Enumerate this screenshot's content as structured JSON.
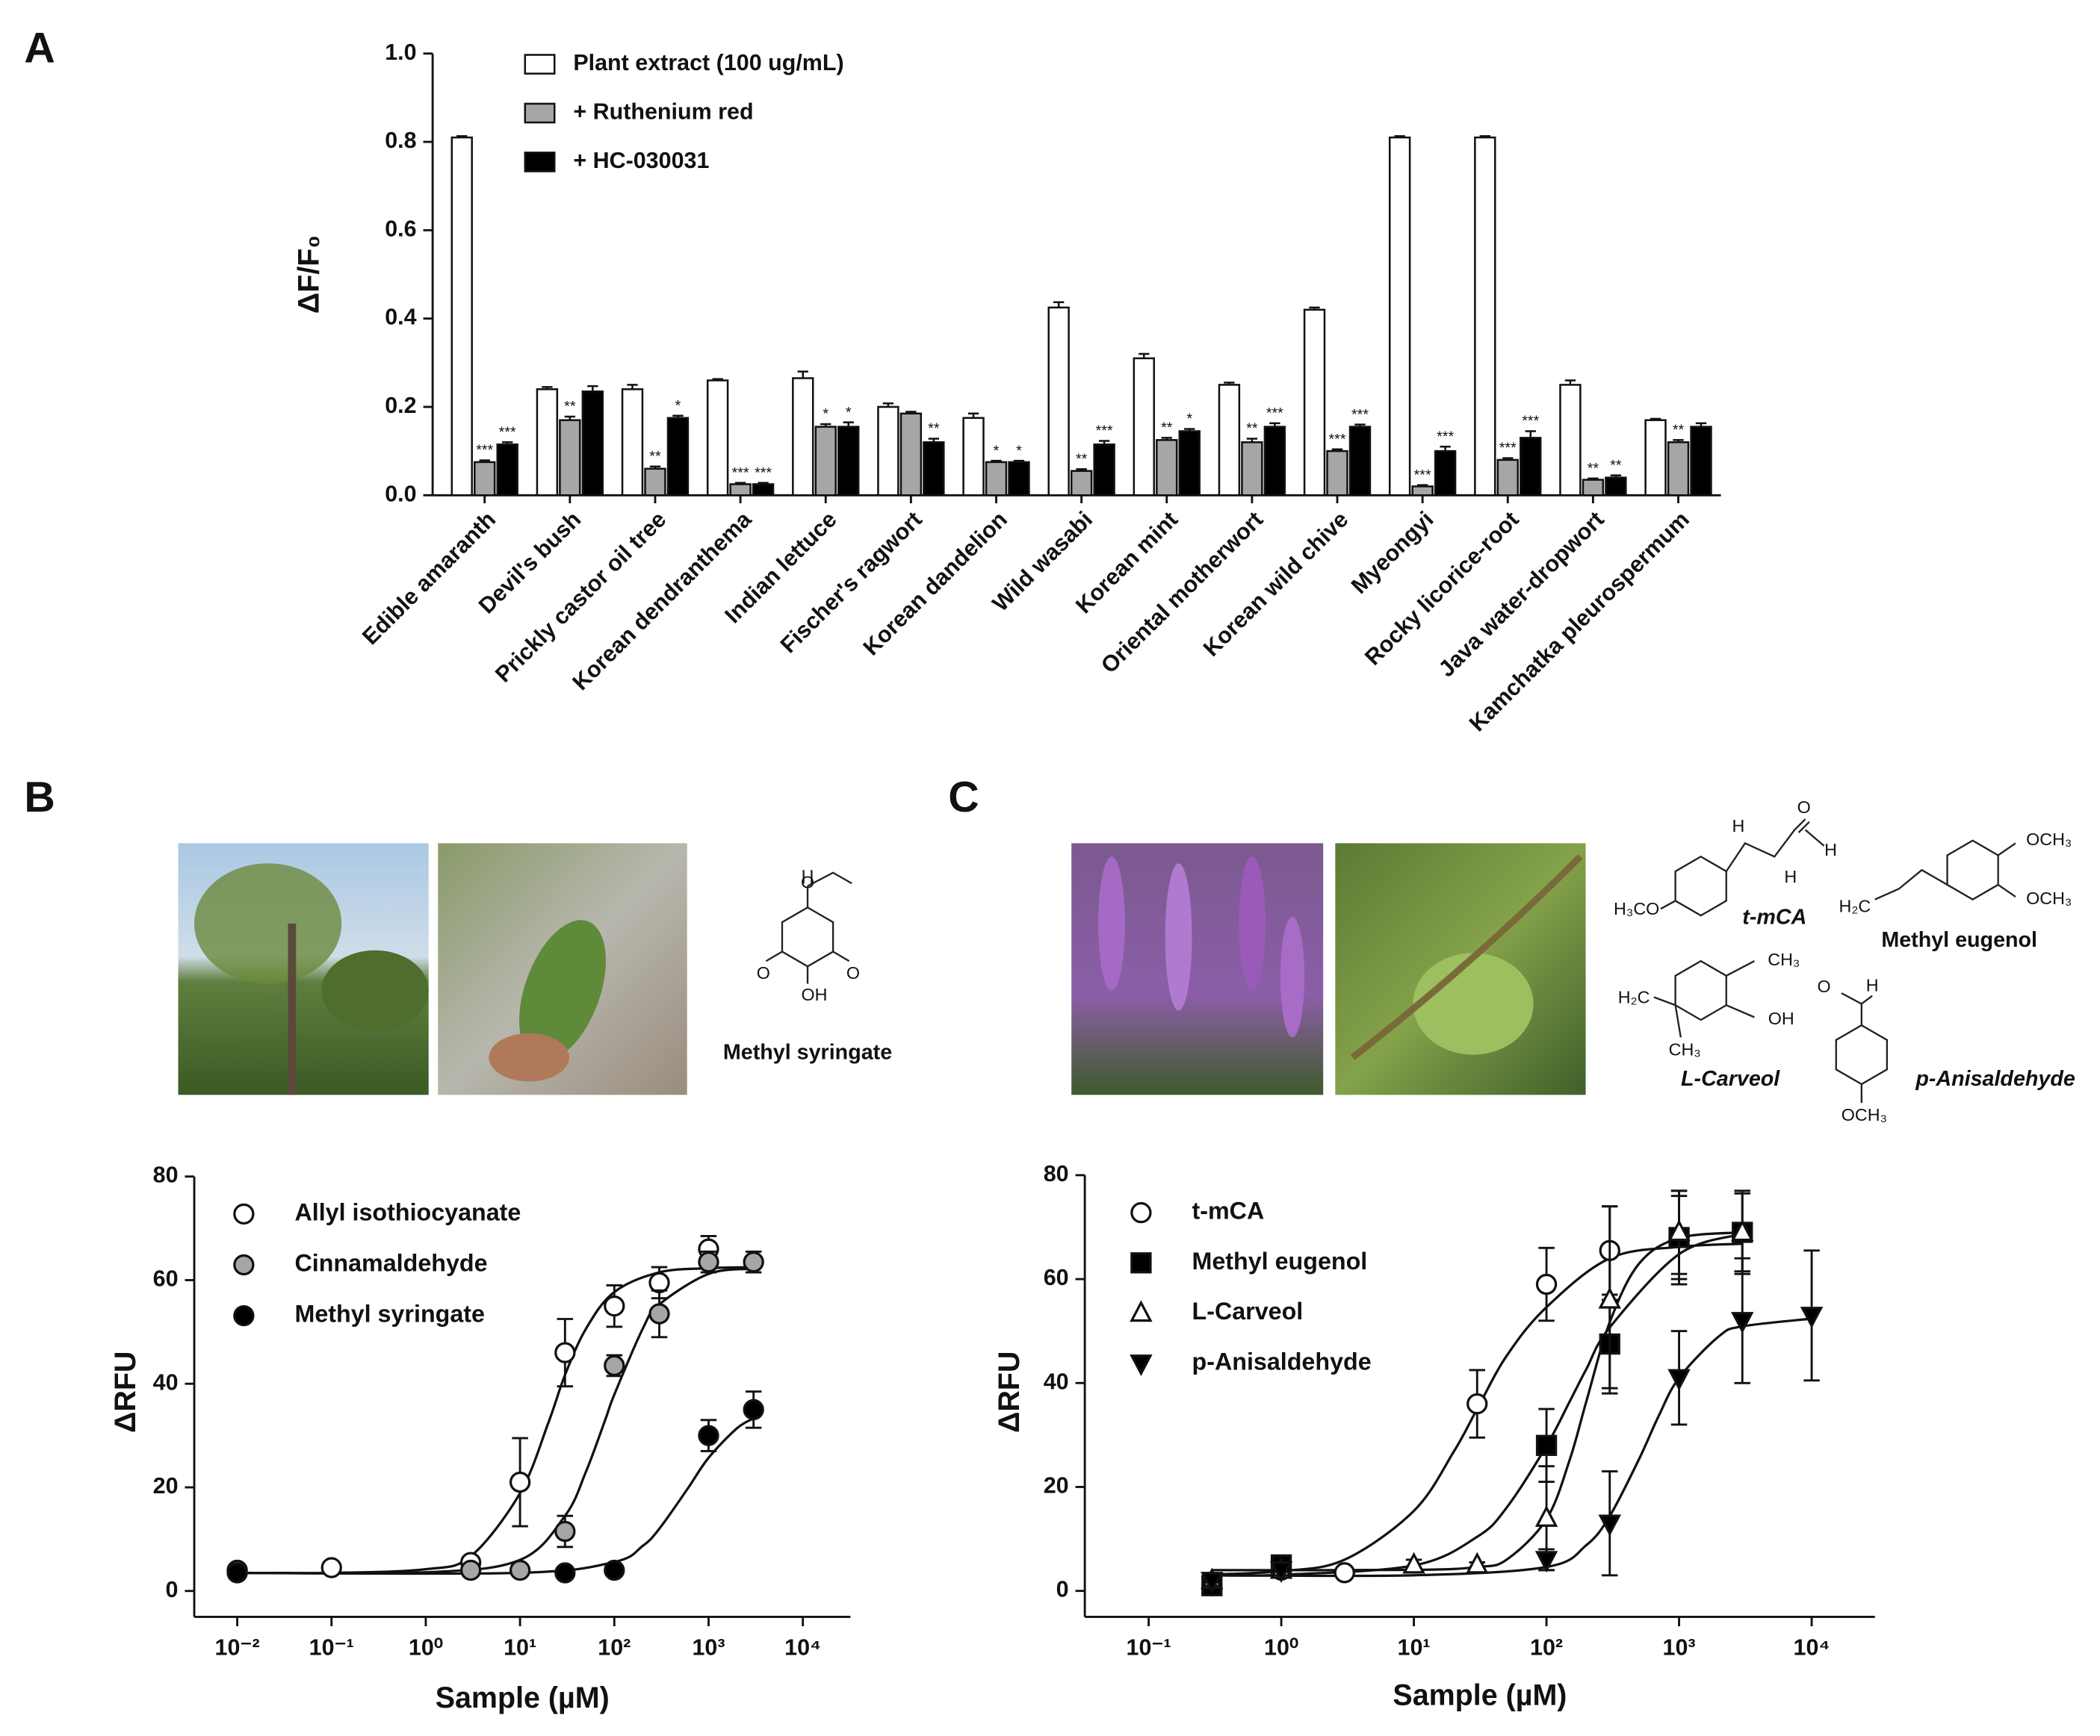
{
  "panel_labels": [
    "A",
    "B",
    "C"
  ],
  "chart_data": [
    {
      "type": "bar",
      "ylabel": "ΔF/F₀",
      "categories": [
        "Edible amaranth",
        "Devil's bush",
        "Prickly castor oil tree",
        "Korean dendranthema",
        "Indian lettuce",
        "Fischer's ragwort",
        "Korean dandelion",
        "Wild wasabi",
        "Korean mint",
        "Oriental motherwort",
        "Korean wild chive",
        "Myeongyi",
        "Rocky licorice-root",
        "Java water-dropwort",
        "Kamchatka pleurospermum"
      ],
      "ylim": [
        0,
        1
      ],
      "yticks": [
        {
          "value": 0,
          "label": "0.0"
        },
        0.2,
        0.4,
        0.6,
        0.8,
        {
          "value": 1,
          "label": "1.0"
        }
      ],
      "legend": "upper-left",
      "series": [
        {
          "name": "Plant extract (100 ug/mL)",
          "color": "#ffffff",
          "values": [
            0.81,
            0.24,
            0.24,
            0.26,
            0.265,
            0.2,
            0.175,
            0.425,
            0.31,
            0.25,
            0.42,
            0.81,
            0.81,
            0.25,
            0.17
          ],
          "errors": [
            0.003,
            0.005,
            0.01,
            0.003,
            0.015,
            0.008,
            0.01,
            0.012,
            0.01,
            0.005,
            0.005,
            0.003,
            0.003,
            0.01,
            0.003
          ]
        },
        {
          "name": "+ Ruthenium red",
          "color": "#a6a6a6",
          "values": [
            0.075,
            0.17,
            0.06,
            0.025,
            0.155,
            0.185,
            0.075,
            0.055,
            0.125,
            0.12,
            0.1,
            0.02,
            0.08,
            0.035,
            0.12
          ],
          "errors": [
            0.004,
            0.008,
            0.005,
            0.003,
            0.006,
            0.004,
            0.003,
            0.004,
            0.005,
            0.008,
            0.004,
            0.003,
            0.004,
            0.003,
            0.005
          ],
          "significance": [
            "***",
            "**",
            "**",
            "***",
            "*",
            null,
            "*",
            "**",
            "**",
            "**",
            "***",
            "***",
            "***",
            "**",
            "**"
          ]
        },
        {
          "name": "+ HC-030031",
          "color": "#000000",
          "values": [
            0.115,
            0.235,
            0.175,
            0.025,
            0.155,
            0.12,
            0.075,
            0.115,
            0.145,
            0.155,
            0.155,
            0.1,
            0.13,
            0.04,
            0.155
          ],
          "errors": [
            0.005,
            0.012,
            0.005,
            0.003,
            0.01,
            0.008,
            0.003,
            0.008,
            0.005,
            0.008,
            0.005,
            0.01,
            0.015,
            0.005,
            0.008
          ],
          "significance": [
            "***",
            null,
            "*",
            "***",
            "*",
            "**",
            "*",
            "***",
            "*",
            "***",
            "***",
            "***",
            "***",
            "**",
            null
          ]
        }
      ]
    },
    {
      "type": "scatter",
      "xscale": "log",
      "xlabel": "Sample (µM)",
      "ylabel": "ΔRFU",
      "xlim": [
        0.0035,
        32000
      ],
      "ylim": [
        -5,
        80
      ],
      "xticks": [
        {
          "value": 0.01,
          "label": "10⁻²"
        },
        {
          "value": 0.1,
          "label": "10⁻¹"
        },
        {
          "value": 1,
          "label": "10⁰"
        },
        {
          "value": 10,
          "label": "10¹"
        },
        {
          "value": 100,
          "label": "10²"
        },
        {
          "value": 1000,
          "label": "10³"
        },
        {
          "value": 10000,
          "label": "10⁴"
        }
      ],
      "yticks": [
        0,
        20,
        40,
        60,
        80
      ],
      "legend": "upper-left",
      "series": [
        {
          "name": "Allyl isothiocyanate",
          "color": "#ffffff",
          "marker": "circle",
          "x": [
            0.01,
            0.1,
            3,
            10,
            30,
            100,
            300,
            1000
          ],
          "values": [
            4,
            4.5,
            5.5,
            21,
            46,
            55,
            59.5,
            66
          ],
          "errors": [
            1,
            1,
            1,
            8.5,
            6.5,
            4,
            3,
            2.5
          ],
          "fit": {
            "x": [
              0.01,
              0.1,
              1,
              3,
              10,
              20,
              30,
              50,
              100,
              300,
              1000,
              3000
            ],
            "values": [
              3.5,
              3.5,
              4.2,
              6.7,
              18.9,
              32.5,
              41.7,
              50.6,
              57.7,
              61.5,
              62.3,
              62.5
            ]
          }
        },
        {
          "name": "Cinnamaldehyde",
          "color": "#a6a6a6",
          "marker": "circle",
          "x": [
            0.01,
            3,
            10,
            30,
            100,
            300,
            1000,
            3000
          ],
          "values": [
            4,
            4,
            4,
            11.5,
            43.5,
            53.5,
            63.5,
            63.5
          ],
          "errors": [
            1,
            1,
            1,
            3,
            2,
            4.5,
            2,
            2
          ],
          "fit": {
            "x": [
              0.01,
              1,
              10,
              30,
              50,
              80,
              100,
              200,
              300,
              1000,
              3000
            ],
            "values": [
              3.5,
              3.6,
              6,
              14.5,
              23,
              33,
              37.9,
              50.6,
              55.3,
              61.2,
              62.2
            ]
          }
        },
        {
          "name": "Methyl syringate",
          "color": "#000000",
          "marker": "circle",
          "x": [
            0.01,
            30,
            100,
            1000,
            3000
          ],
          "values": [
            3.5,
            3.5,
            4,
            30,
            35
          ],
          "errors": [
            1,
            1,
            1,
            3,
            3.5
          ],
          "fit": {
            "x": [
              0.01,
              10,
              100,
              200,
              300,
              600,
              1000,
              2000,
              3000
            ],
            "values": [
              3.5,
              3.5,
              5.6,
              8.7,
              12,
              19.75,
              25.7,
              31.4,
              33.3
            ]
          }
        }
      ]
    },
    {
      "type": "scatter",
      "xscale": "log",
      "xlabel": "Sample (µM)",
      "ylabel": "ΔRFU",
      "xlim": [
        0.033,
        30000
      ],
      "ylim": [
        -5,
        80
      ],
      "xticks": [
        {
          "value": 0.1,
          "label": "10⁻¹"
        },
        {
          "value": 1,
          "label": "10⁰"
        },
        {
          "value": 10,
          "label": "10¹"
        },
        {
          "value": 100,
          "label": "10²"
        },
        {
          "value": 1000,
          "label": "10³"
        },
        {
          "value": 10000,
          "label": "10⁴"
        }
      ],
      "yticks": [
        0,
        20,
        40,
        60,
        80
      ],
      "legend": "upper-left",
      "series": [
        {
          "name": "t-mCA",
          "color": "#ffffff",
          "marker": "circle",
          "x": [
            0.3,
            1,
            3,
            30,
            100,
            300,
            1000
          ],
          "values": [
            1,
            4,
            3.5,
            36,
            59,
            65.5,
            68
          ],
          "errors": [
            1.5,
            1,
            0.5,
            6.5,
            7,
            8.5,
            8
          ],
          "fit": {
            "x": [
              0.3,
              1,
              3,
              10,
              20,
              30,
              50,
              100,
              300,
              1000,
              3000
            ],
            "values": [
              3.16,
              3.8,
              6,
              15.4,
              26.8,
              35,
              45.2,
              54.6,
              64,
              66.2,
              66.8
            ]
          }
        },
        {
          "name": "Methyl eugenol",
          "color": "#000000",
          "marker": "square",
          "x": [
            0.3,
            1,
            100,
            300,
            1000,
            3000
          ],
          "values": [
            1,
            5,
            28,
            47.5,
            68,
            69
          ],
          "errors": [
            1.5,
            1,
            7,
            8.5,
            9,
            7.5
          ],
          "fit": {
            "x": [
              0.3,
              1,
              10,
              30,
              50,
              100,
              150,
              200,
              300,
              1000,
              3000
            ],
            "values": [
              3,
              3.1,
              4.9,
              10.4,
              16,
              27.9,
              36.5,
              42.7,
              50.7,
              64.8,
              68.7
            ]
          }
        },
        {
          "name": "L-Carveol",
          "color": "#ffffff",
          "marker": "triangle",
          "x": [
            0.3,
            1,
            10,
            30,
            100,
            300,
            1000,
            3000
          ],
          "values": [
            2,
            4,
            5,
            5,
            14,
            56,
            69,
            69
          ],
          "errors": [
            1,
            1,
            1,
            0.5,
            10,
            18,
            8,
            8
          ],
          "fit": {
            "x": [
              0.3,
              10,
              30,
              50,
              100,
              150,
              200,
              300,
              500,
              1000,
              3000
            ],
            "values": [
              4,
              4.04,
              4.6,
              6,
              13.8,
              25.3,
              36.5,
              51.7,
              63,
              67.9,
              69
            ]
          }
        },
        {
          "name": "p-Anisaldehyde",
          "color": "#000000",
          "marker": "triangle-down",
          "x": [
            0.3,
            1,
            100,
            300,
            1000,
            3000,
            10000
          ],
          "values": [
            2,
            4,
            6,
            13,
            41,
            52,
            53
          ],
          "errors": [
            1,
            1,
            2,
            10,
            9,
            12,
            12.5
          ],
          "fit": {
            "x": [
              0.3,
              10,
              100,
              200,
              300,
              500,
              700,
              1000,
              2000,
              3000,
              10000
            ],
            "values": [
              3,
              3,
              4.6,
              8.8,
              14.4,
              25.4,
              33.6,
              41,
              49,
              50.9,
              52.4
            ]
          }
        }
      ]
    }
  ],
  "compounds": {
    "B": [
      {
        "name": "Methyl syringate",
        "atoms": [
          "O",
          "O",
          "O",
          "OH"
        ]
      }
    ],
    "C": [
      {
        "name": "t-mCA",
        "atoms": [
          "H₃CO",
          "H",
          "O",
          "H",
          "H"
        ]
      },
      {
        "name": "Methyl eugenol",
        "atoms": [
          "OCH₃",
          "OCH₃",
          "H₂C"
        ]
      },
      {
        "name": "L-Carveol",
        "atoms": [
          "CH₃",
          "OH",
          "H₂C",
          "CH₃"
        ]
      },
      {
        "name": "p-Anisaldehyde",
        "atoms": [
          "O",
          "H",
          "OCH₃"
        ]
      }
    ]
  }
}
